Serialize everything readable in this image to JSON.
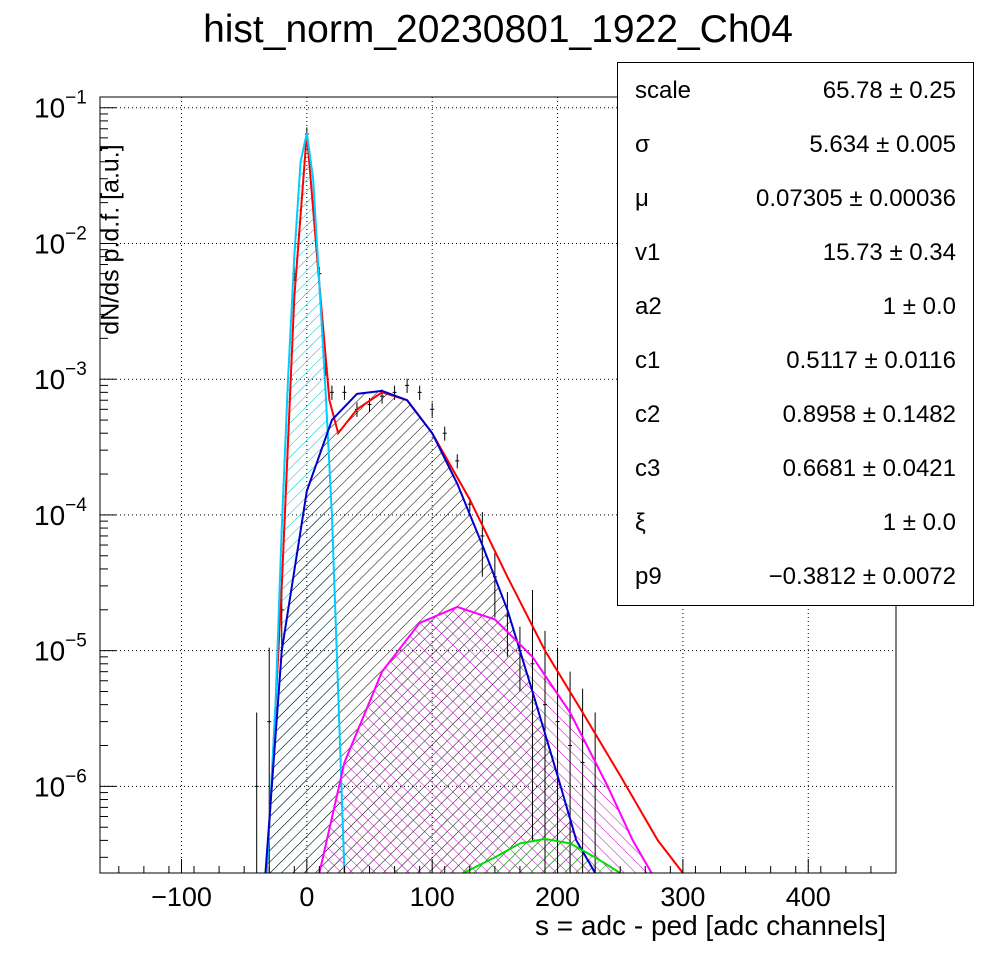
{
  "title": "hist_norm_20230801_1922_Ch04",
  "stats": [
    {
      "name": "scale",
      "value": "65.78 ± 0.25"
    },
    {
      "name": "σ",
      "value": "5.634 ± 0.005"
    },
    {
      "name": "μ",
      "value": "0.07305 ± 0.00036"
    },
    {
      "name": "v1",
      "value": "15.73 ± 0.34"
    },
    {
      "name": "a2",
      "value": "1 ± 0.0"
    },
    {
      "name": "c1",
      "value": "0.5117 ± 0.0116"
    },
    {
      "name": "c2",
      "value": "0.8958 ± 0.1482"
    },
    {
      "name": "c3",
      "value": "0.6681 ± 0.0421"
    },
    {
      "name": "ξ",
      "value": "1 ± 0.0"
    },
    {
      "name": "p9",
      "value": "−0.3812 ± 0.0072"
    }
  ],
  "chart_data": {
    "type": "line",
    "title": "hist_norm_20230801_1922_Ch04",
    "xlabel": "s = adc - ped [adc channels]",
    "ylabel": "dN/ds p.d.f. [a.u.]",
    "xlim": [
      -165,
      470
    ],
    "ylim": [
      2.3e-07,
      0.12
    ],
    "yscale": "log",
    "grid": true,
    "legend": "top-right",
    "xticks": [
      -100,
      0,
      100,
      200,
      300,
      400
    ],
    "xtick_labels": [
      "−100",
      "0",
      "100",
      "200",
      "300",
      "400"
    ],
    "yticks": [
      {
        "base": "10",
        "exp": "−6",
        "value": 1e-06
      },
      {
        "base": "10",
        "exp": "−5",
        "value": 1e-05
      },
      {
        "base": "10",
        "exp": "−4",
        "value": 0.0001
      },
      {
        "base": "10",
        "exp": "−3",
        "value": 0.001
      },
      {
        "base": "10",
        "exp": "−2",
        "value": 0.01
      },
      {
        "base": "10",
        "exp": "−1",
        "value": 0.1
      }
    ],
    "series": [
      {
        "role": "total-fit",
        "color": "#ff0000",
        "x": [
          -30,
          -20,
          -10,
          0,
          10,
          18,
          25,
          40,
          60,
          80,
          100,
          130,
          160,
          190,
          220,
          250,
          280,
          300
        ],
        "y": [
          5e-07,
          3e-05,
          0.004,
          0.065,
          0.005,
          0.0007,
          0.0004,
          0.0006,
          0.0008,
          0.0007,
          0.0004,
          0.00013,
          3.5e-05,
          1e-05,
          3.5e-06,
          1.2e-06,
          4e-07,
          2.3e-07
        ]
      },
      {
        "role": "pedestal-component",
        "color": "#00ccff",
        "x": [
          -32,
          -25,
          -20,
          -15,
          -10,
          -5,
          0,
          5,
          10,
          15,
          20,
          25,
          30
        ],
        "y": [
          2.3e-07,
          4e-06,
          8e-05,
          0.001,
          0.008,
          0.04,
          0.065,
          0.03,
          0.005,
          0.0008,
          0.0001,
          5e-06,
          2.3e-07
        ]
      },
      {
        "role": "single-pe-component",
        "color": "#0000cc",
        "x": [
          -33,
          -20,
          0,
          20,
          40,
          60,
          80,
          100,
          120,
          140,
          160,
          180,
          200,
          215,
          230
        ],
        "y": [
          2.3e-07,
          1e-05,
          0.00015,
          0.0005,
          0.00078,
          0.00082,
          0.0007,
          0.0004,
          0.00017,
          6e-05,
          2e-05,
          5e-06,
          1.2e-06,
          4e-07,
          2.3e-07
        ]
      },
      {
        "role": "two-pe-component",
        "color": "#ff00ff",
        "x": [
          10,
          30,
          60,
          90,
          120,
          150,
          180,
          210,
          240,
          260,
          275
        ],
        "y": [
          2.3e-07,
          1.5e-06,
          7e-06,
          1.6e-05,
          2.1e-05,
          1.7e-05,
          9e-06,
          3.5e-06,
          1e-06,
          4e-07,
          2.3e-07
        ]
      },
      {
        "role": "three-pe-component",
        "color": "#00dd00",
        "x": [
          125,
          150,
          170,
          190,
          210,
          230,
          250
        ],
        "y": [
          2.3e-07,
          3e-07,
          3.8e-07,
          4.1e-07,
          3.8e-07,
          3e-07,
          2.3e-07
        ]
      }
    ],
    "data_points": {
      "x": [
        -40,
        -30,
        -20,
        -10,
        0,
        10,
        15,
        20,
        30,
        40,
        50,
        60,
        70,
        80,
        90,
        100,
        110,
        120,
        130,
        140,
        150,
        160,
        170,
        180,
        190,
        200,
        210,
        220,
        230
      ],
      "y": [
        1e-06,
        3e-06,
        2e-05,
        0.006,
        0.064,
        0.006,
        0.0012,
        0.0008,
        0.0008,
        0.0006,
        0.00065,
        0.00075,
        0.0008,
        0.0009,
        0.0008,
        0.0006,
        0.0004,
        0.00025,
        0.00012,
        7e-05,
        3.5e-05,
        1.8e-05,
        1e-05,
        8e-06,
        4e-06,
        3e-06,
        2e-06,
        1.5e-06,
        1e-06
      ]
    }
  }
}
